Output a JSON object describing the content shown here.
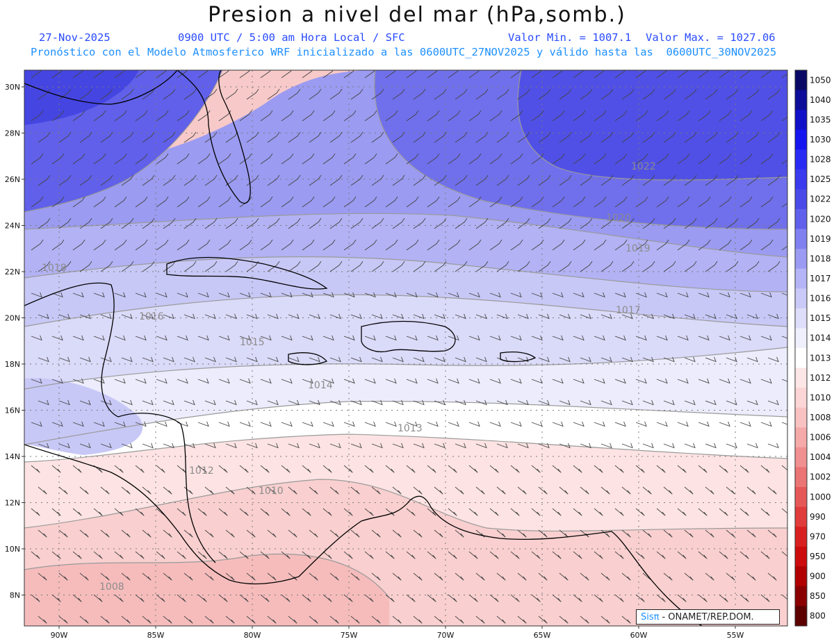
{
  "header": {
    "title": "Presion a nivel del mar (hPa,somb.)",
    "date": "27-Nov-2025",
    "time": "0900 UTC / 5:00 am Hora Local / SFC",
    "min": "Valor Min. = 1007.1",
    "max": "Valor Max. = 1027.06",
    "forecast": "Pronóstico con el Modelo Atmosferico WRF inicializado a las 0600UTC_27NOV2025 y válido hasta las  0600UTC_30NOV2025"
  },
  "colorbar": {
    "labels": [
      "1050",
      "1040",
      "1035",
      "1030",
      "1028",
      "1025",
      "1022",
      "1020",
      "1019",
      "1018",
      "1017",
      "1016",
      "1015",
      "1014",
      "1013",
      "1012",
      "1010",
      "1008",
      "1006",
      "1004",
      "1002",
      "1000",
      "990",
      "970",
      "950",
      "900",
      "850",
      "800"
    ],
    "colors": [
      "#0a0a66",
      "#0d0d99",
      "#1010c8",
      "#1515f0",
      "#2a2af5",
      "#3a3aee",
      "#4a4ae8",
      "#6060ec",
      "#8080f0",
      "#9b9bf4",
      "#b4b4f6",
      "#cacaf8",
      "#dedefa",
      "#f0f0fd",
      "#ffffff",
      "#fde6e6",
      "#fcd6d6",
      "#f9c2c2",
      "#f5a9a9",
      "#f09090",
      "#eb7474",
      "#e65858",
      "#e03c3c",
      "#d92020",
      "#cc0c0c",
      "#b00000",
      "#8a0000",
      "#5c0000"
    ]
  },
  "axes": {
    "lon_ticks": [
      "90W",
      "85W",
      "80W",
      "75W",
      "70W",
      "65W",
      "60W",
      "55W"
    ],
    "lat_ticks": [
      "30N",
      "28N",
      "26N",
      "24N",
      "22N",
      "20N",
      "18N",
      "16N",
      "14N",
      "12N",
      "10N",
      "8N"
    ]
  },
  "isobars": [
    {
      "label": "1022"
    },
    {
      "label": "1020"
    },
    {
      "label": "1019"
    },
    {
      "label": "1018"
    },
    {
      "label": "1017"
    },
    {
      "label": "1016"
    },
    {
      "label": "1015"
    },
    {
      "label": "1014"
    },
    {
      "label": "1013"
    },
    {
      "label": "1012"
    },
    {
      "label": "1010"
    },
    {
      "label": "1008"
    }
  ],
  "credit": {
    "logo": "Sisπ",
    "text": "- ONAMET/REP.DOM."
  }
}
